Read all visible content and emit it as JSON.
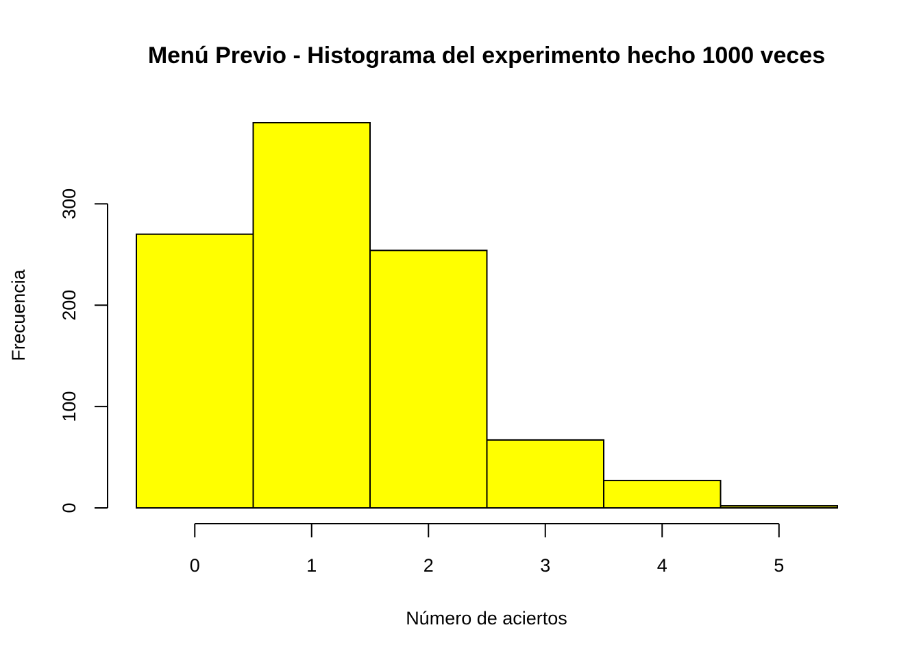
{
  "chart_data": {
    "type": "bar",
    "title": "Menú Previo - Histograma del experimento hecho 1000 veces",
    "xlabel": "Número de aciertos",
    "ylabel": "Frecuencia",
    "bin_edges": [
      -0.5,
      0.5,
      1.5,
      2.5,
      3.5,
      4.5,
      5.5
    ],
    "categories": [
      "0",
      "1",
      "2",
      "3",
      "4",
      "5"
    ],
    "values": [
      270,
      380,
      254,
      67,
      27,
      2
    ],
    "xlim": [
      -0.5,
      5.5
    ],
    "ylim": [
      0,
      380
    ],
    "x_ticks": [
      0,
      1,
      2,
      3,
      4,
      5
    ],
    "x_tick_labels": [
      "0",
      "1",
      "2",
      "3",
      "4",
      "5"
    ],
    "y_ticks": [
      0,
      100,
      200,
      300
    ],
    "y_tick_labels": [
      "0",
      "100",
      "200",
      "300"
    ],
    "bar_color": "#ffff00",
    "edge_color": "#000000",
    "grid": false,
    "legend": "none"
  }
}
